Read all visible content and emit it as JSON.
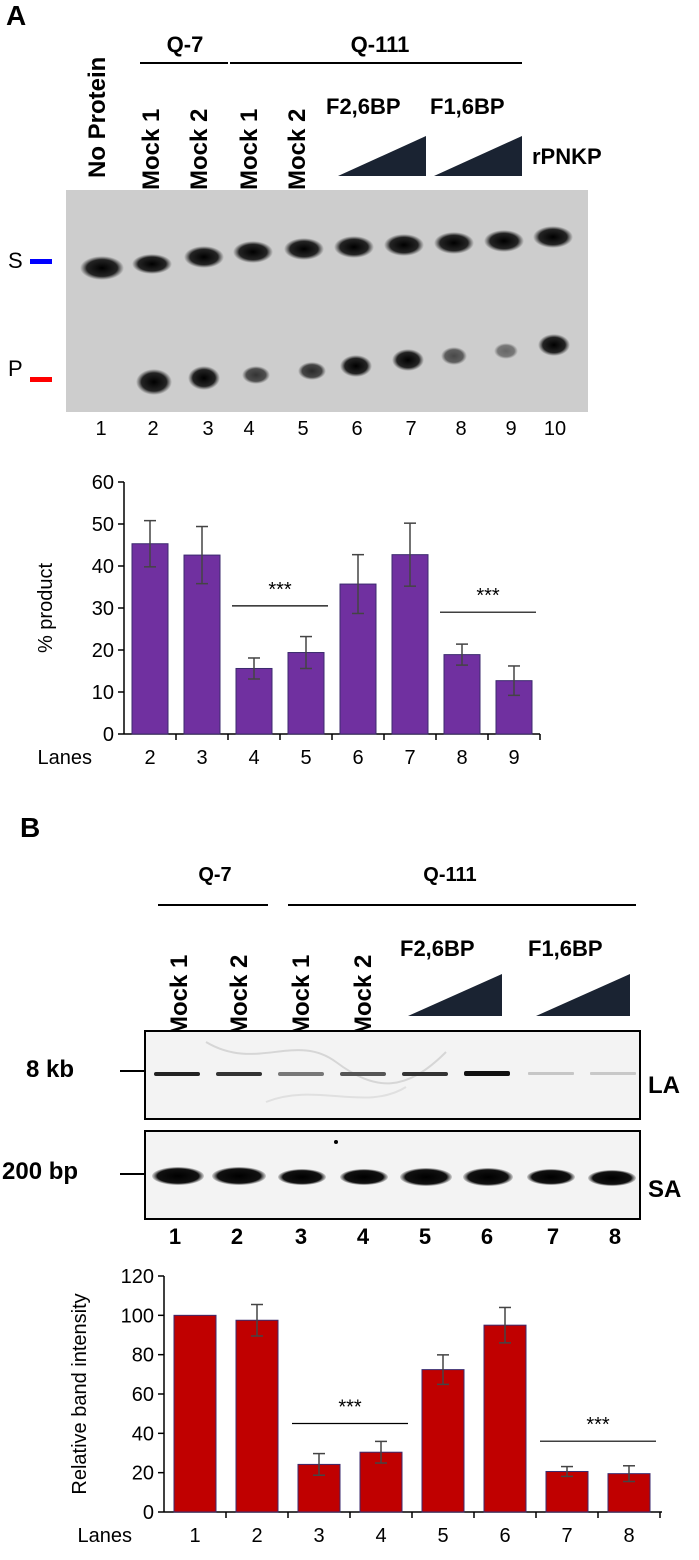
{
  "panel_a": {
    "letter": "A",
    "group_q7": "Q-7",
    "group_q111": "Q-111",
    "lane_labels": [
      "No Protein",
      "Mock 1",
      "Mock 2",
      "Mock 1",
      "Mock 2"
    ],
    "f26": "F2,6BP",
    "f16": "F1,6BP",
    "rpnkp": "rPNKP",
    "marker_s": "S",
    "marker_p": "P",
    "lane_numbers": [
      "1",
      "2",
      "3",
      "4",
      "5",
      "6",
      "7",
      "8",
      "9",
      "10"
    ],
    "colors": {
      "bar": "#7030a0",
      "marker_s": "#0000ff",
      "marker_p": "#ff0000"
    }
  },
  "panel_b": {
    "letter": "B",
    "group_q7": "Q-7",
    "group_q111": "Q-111",
    "lane_labels": [
      "Mock 1",
      "Mock 2",
      "Mock 1",
      "Mock 2"
    ],
    "f26": "F2,6BP",
    "f16": "F1,6BP",
    "marker_8kb": "8 kb",
    "marker_200bp": "200 bp",
    "label_la": "LA",
    "label_sa": "SA",
    "lane_numbers": [
      "1",
      "2",
      "3",
      "4",
      "5",
      "6",
      "7",
      "8"
    ],
    "colors": {
      "bar": "#c00000"
    }
  },
  "chart_data": [
    {
      "type": "bar",
      "categories": [
        "2",
        "3",
        "4",
        "5",
        "6",
        "7",
        "8",
        "9"
      ],
      "values": [
        45.3,
        42.6,
        15.6,
        19.4,
        35.7,
        42.7,
        18.9,
        12.7
      ],
      "errors": [
        5.5,
        6.8,
        2.5,
        3.8,
        7.0,
        7.5,
        2.5,
        3.5
      ],
      "ylabel": "% product",
      "xlabel": "Lanes",
      "ylim": [
        0,
        60
      ],
      "yticks": [
        "0",
        "10",
        "20",
        "30",
        "40",
        "50",
        "60"
      ],
      "annotations": [
        "***",
        "***"
      ]
    },
    {
      "type": "bar",
      "categories": [
        "1",
        "2",
        "3",
        "4",
        "5",
        "6",
        "7",
        "8"
      ],
      "values": [
        100,
        97.5,
        24.2,
        30.4,
        72.4,
        95.0,
        20.6,
        19.5
      ],
      "errors": [
        0,
        8.0,
        5.5,
        5.5,
        7.5,
        9.0,
        2.5,
        4.0
      ],
      "ylabel": "Relative band intensity",
      "xlabel": "Lanes",
      "ylim": [
        0,
        120
      ],
      "yticks": [
        "0",
        "20",
        "40",
        "60",
        "80",
        "100",
        "120"
      ],
      "annotations": [
        "***",
        "***"
      ]
    }
  ]
}
